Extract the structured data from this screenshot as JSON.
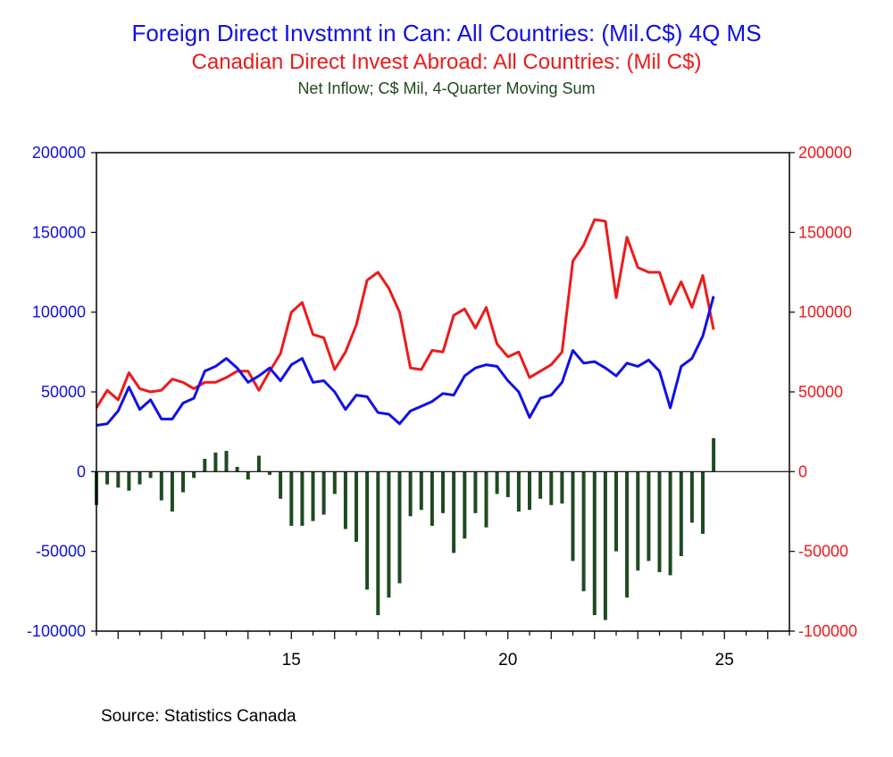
{
  "colors": {
    "fdi_in": "#1010e8",
    "cdi_abroad": "#ee1a1a",
    "net": "#1f4a22",
    "axis": "#000000"
  },
  "source": "Source:  Statistics Canada",
  "chart_data": {
    "type": "line+bar",
    "titles": [
      "Foreign Direct Invstmnt in Can: All Countries: (Mil.C$) 4Q MS",
      "Canadian Direct Invest Abroad: All Countries: (Mil C$)",
      "Net Inflow; C$ Mil, 4-Quarter Moving Sum"
    ],
    "x_range": [
      10.5,
      26.5
    ],
    "x_ticks": [
      {
        "value": 15,
        "label": "15"
      },
      {
        "value": 20,
        "label": "20"
      },
      {
        "value": 25,
        "label": "25"
      }
    ],
    "ylim": [
      -100000,
      200000
    ],
    "y_ticks_left": [
      "200000",
      "150000",
      "100000",
      "50000",
      "0",
      "-50000",
      "-100000"
    ],
    "y_ticks_right": [
      "200000",
      "150000",
      "100000",
      "50000",
      "0",
      "-50000",
      "-100000"
    ],
    "y_tick_values": [
      200000,
      150000,
      100000,
      50000,
      0,
      -50000,
      -100000
    ],
    "x_start": 10.5,
    "x_step": 0.25,
    "series": [
      {
        "name": "Foreign Direct Invstmnt in Can: All Countries: (Mil.C$) 4Q MS",
        "kind": "line",
        "axis": "left",
        "values": [
          29000,
          30000,
          38000,
          53000,
          39000,
          45000,
          33000,
          33000,
          43000,
          46000,
          63000,
          66000,
          71000,
          65000,
          56000,
          60000,
          65000,
          57000,
          67000,
          71000,
          56000,
          57000,
          50000,
          39000,
          48000,
          47000,
          37000,
          36000,
          30000,
          38000,
          41000,
          44000,
          49000,
          48000,
          60000,
          65000,
          67000,
          66000,
          57000,
          50000,
          34000,
          46000,
          48000,
          56000,
          76000,
          68000,
          69000,
          65000,
          60000,
          68000,
          66000,
          70000,
          63000,
          40000,
          66000,
          71000,
          85000,
          110000
        ]
      },
      {
        "name": "Canadian Direct Invest Abroad: All Countries: (Mil C$)",
        "kind": "line",
        "axis": "right",
        "values": [
          40000,
          51000,
          45000,
          62000,
          52000,
          50000,
          51000,
          58000,
          56000,
          52000,
          56000,
          56000,
          59000,
          63000,
          63000,
          51000,
          63000,
          74000,
          100000,
          106000,
          86000,
          84000,
          64000,
          75000,
          92000,
          120000,
          125000,
          115000,
          100000,
          65000,
          64000,
          76000,
          75000,
          98000,
          102000,
          90000,
          103000,
          80000,
          72000,
          75000,
          59000,
          63000,
          67000,
          75000,
          132000,
          142000,
          158000,
          157000,
          109000,
          147000,
          128000,
          125000,
          125000,
          105000,
          119000,
          103000,
          123000,
          89000
        ]
      },
      {
        "name": "Net Inflow; C$ Mil, 4-Quarter Moving Sum",
        "kind": "bar",
        "axis": "left",
        "values": [
          -21000,
          -8000,
          -10000,
          -12000,
          -8000,
          -4000,
          -18000,
          -25000,
          -13000,
          -4000,
          8000,
          12000,
          13000,
          3000,
          -5000,
          10000,
          -2000,
          -17000,
          -34000,
          -34000,
          -31000,
          -27000,
          -14000,
          -36000,
          -44000,
          -74000,
          -90000,
          -79000,
          -70000,
          -28000,
          -24000,
          -34000,
          -26000,
          -51000,
          -42000,
          -26000,
          -35000,
          -14000,
          -16000,
          -25000,
          -24000,
          -17000,
          -21000,
          -20000,
          -56000,
          -75000,
          -90000,
          -93000,
          -50000,
          -79000,
          -62000,
          -56000,
          -63000,
          -65000,
          -53000,
          -32000,
          -39000,
          21000
        ]
      }
    ]
  }
}
